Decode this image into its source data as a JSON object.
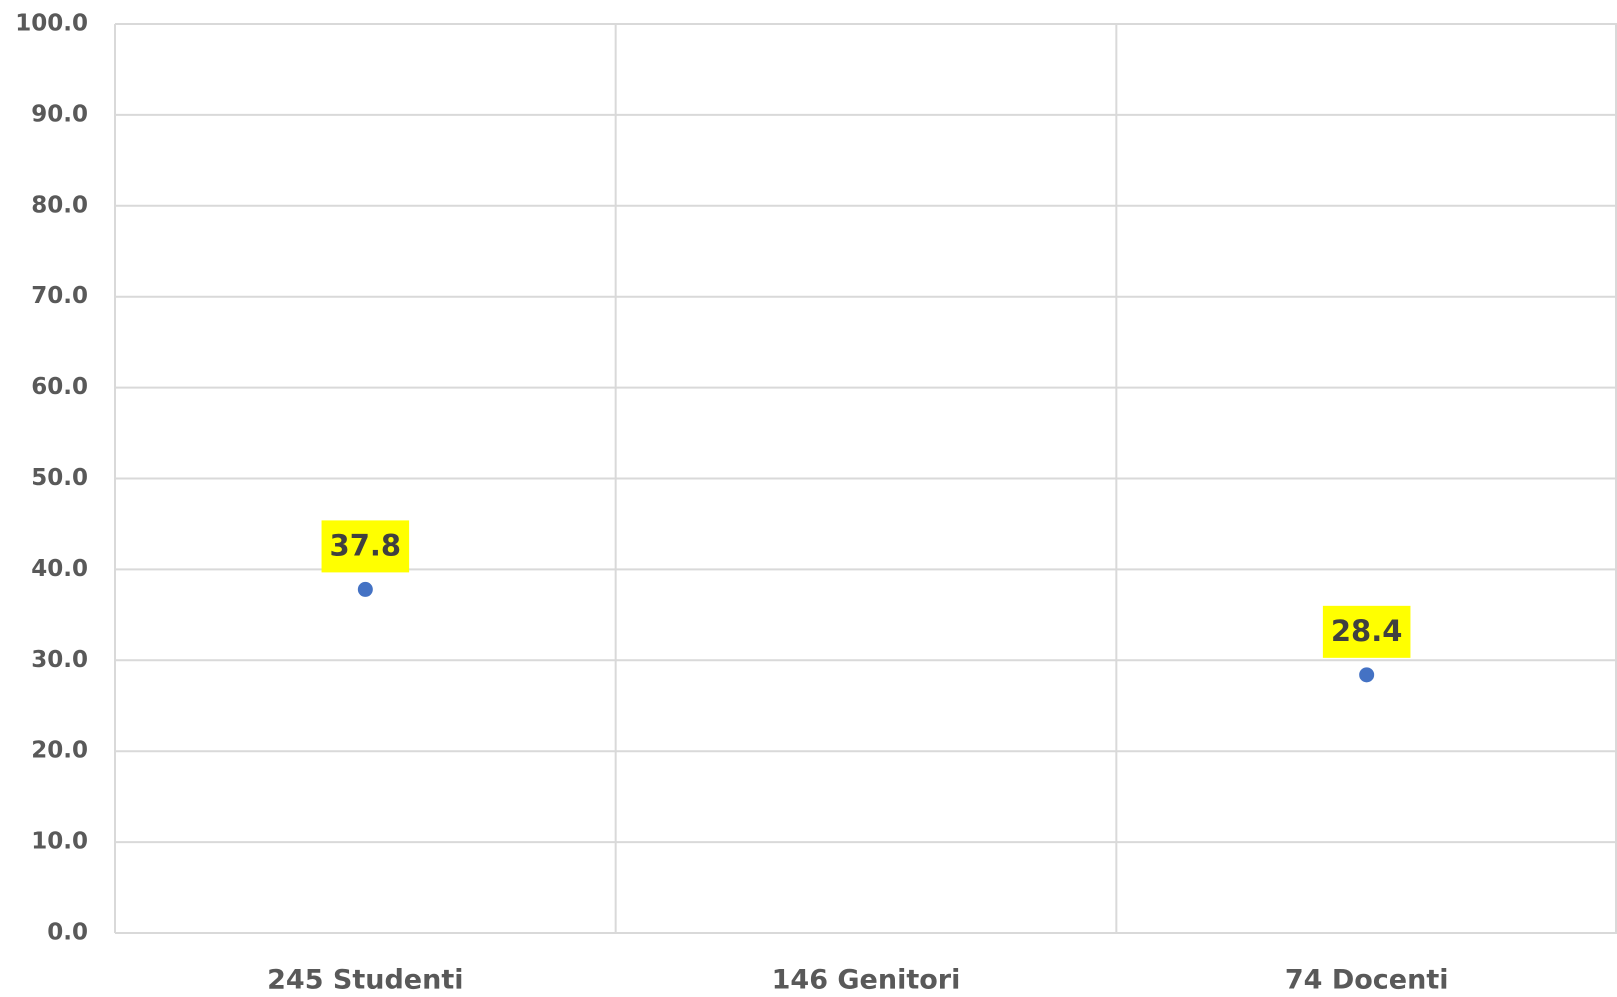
{
  "chart_data": {
    "type": "scatter",
    "categories": [
      "245 Studenti",
      "146 Genitori",
      "74 Docenti"
    ],
    "values": [
      37.8,
      null,
      28.4
    ],
    "color": "#4472c4",
    "label_background": "#ffff00",
    "ylim": [
      0,
      100
    ],
    "yticks": [
      {
        "value": 0,
        "label": "0.0"
      },
      {
        "value": 10,
        "label": "10.0"
      },
      {
        "value": 20,
        "label": "20.0"
      },
      {
        "value": 30,
        "label": "30.0"
      },
      {
        "value": 40,
        "label": "40.0"
      },
      {
        "value": 50,
        "label": "50.0"
      },
      {
        "value": 60,
        "label": "60.0"
      },
      {
        "value": 70,
        "label": "70.0"
      },
      {
        "value": 80,
        "label": "80.0"
      },
      {
        "value": 90,
        "label": "90.0"
      },
      {
        "value": 100,
        "label": "100.0"
      }
    ],
    "grid": true
  }
}
